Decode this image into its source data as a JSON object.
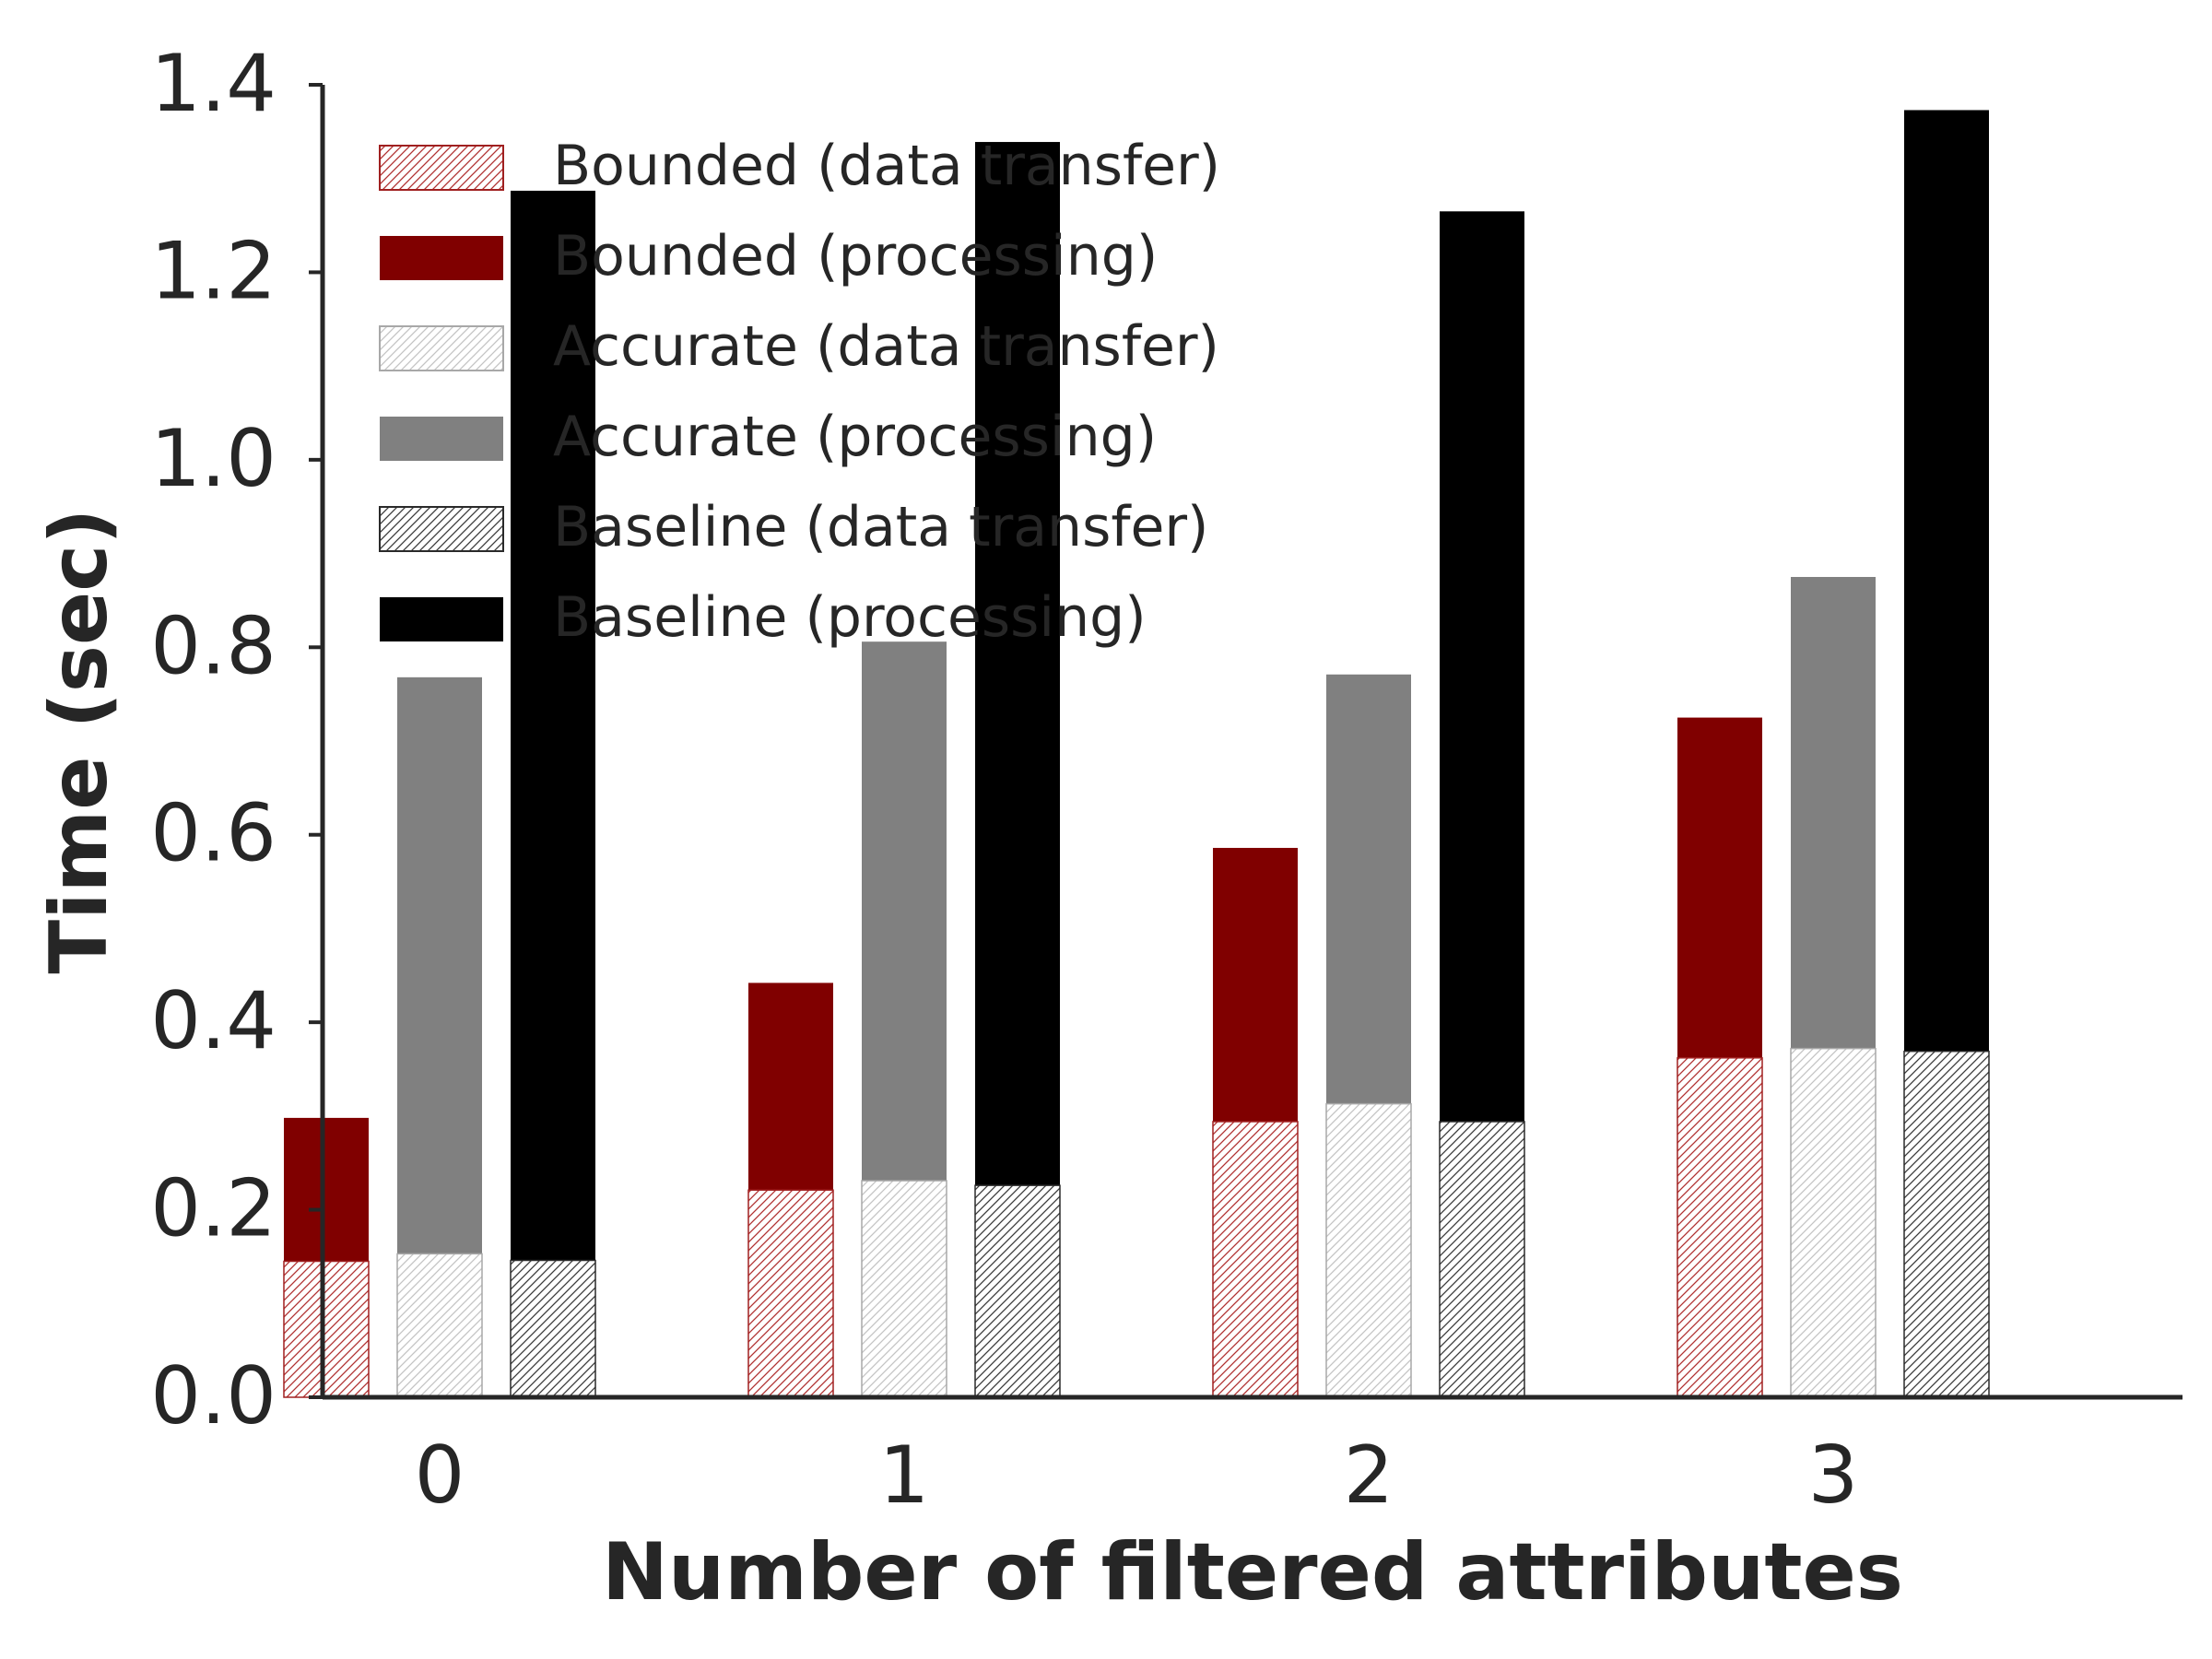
{
  "chart_data": {
    "type": "bar",
    "stacked": true,
    "title": "",
    "xlabel": "Number of filtered attributes",
    "ylabel": "Time (sec)",
    "ylim": [
      0.0,
      1.4
    ],
    "yticks": [
      "0.0",
      "0.2",
      "0.4",
      "0.6",
      "0.8",
      "1.0",
      "1.2",
      "1.4"
    ],
    "categories": [
      "0",
      "1",
      "2",
      "3"
    ],
    "grid": false,
    "legend_position": "top-left",
    "groups": [
      {
        "name": "Bounded",
        "transfer_series": "Bounded (data transfer)",
        "processing_series": "Bounded (processing)",
        "transfer": [
          0.145,
          0.221,
          0.294,
          0.362
        ],
        "total": [
          0.298,
          0.442,
          0.586,
          0.725
        ]
      },
      {
        "name": "Accurate",
        "transfer_series": "Accurate (data transfer)",
        "processing_series": "Accurate (processing)",
        "transfer": [
          0.153,
          0.231,
          0.313,
          0.372
        ],
        "total": [
          0.768,
          0.806,
          0.771,
          0.875
        ]
      },
      {
        "name": "Baseline",
        "transfer_series": "Baseline (data transfer)",
        "processing_series": "Baseline (processing)",
        "transfer": [
          0.146,
          0.226,
          0.294,
          0.369
        ],
        "total": [
          1.287,
          1.339,
          1.265,
          1.373
        ]
      }
    ],
    "legend": [
      "Bounded (data transfer)",
      "Bounded (processing)",
      "Accurate (data transfer)",
      "Accurate (processing)",
      "Baseline (data transfer)",
      "Baseline (processing)"
    ],
    "colors": {
      "Bounded": {
        "processing": "#800000",
        "hatch": "#b03030",
        "edge": "#a02020"
      },
      "Accurate": {
        "processing": "#808080",
        "hatch": "#c4c4c4",
        "edge": "#a8a8a8"
      },
      "Baseline": {
        "processing": "#000000",
        "hatch": "#3a3a3a",
        "edge": "#2a2a2a"
      }
    }
  }
}
